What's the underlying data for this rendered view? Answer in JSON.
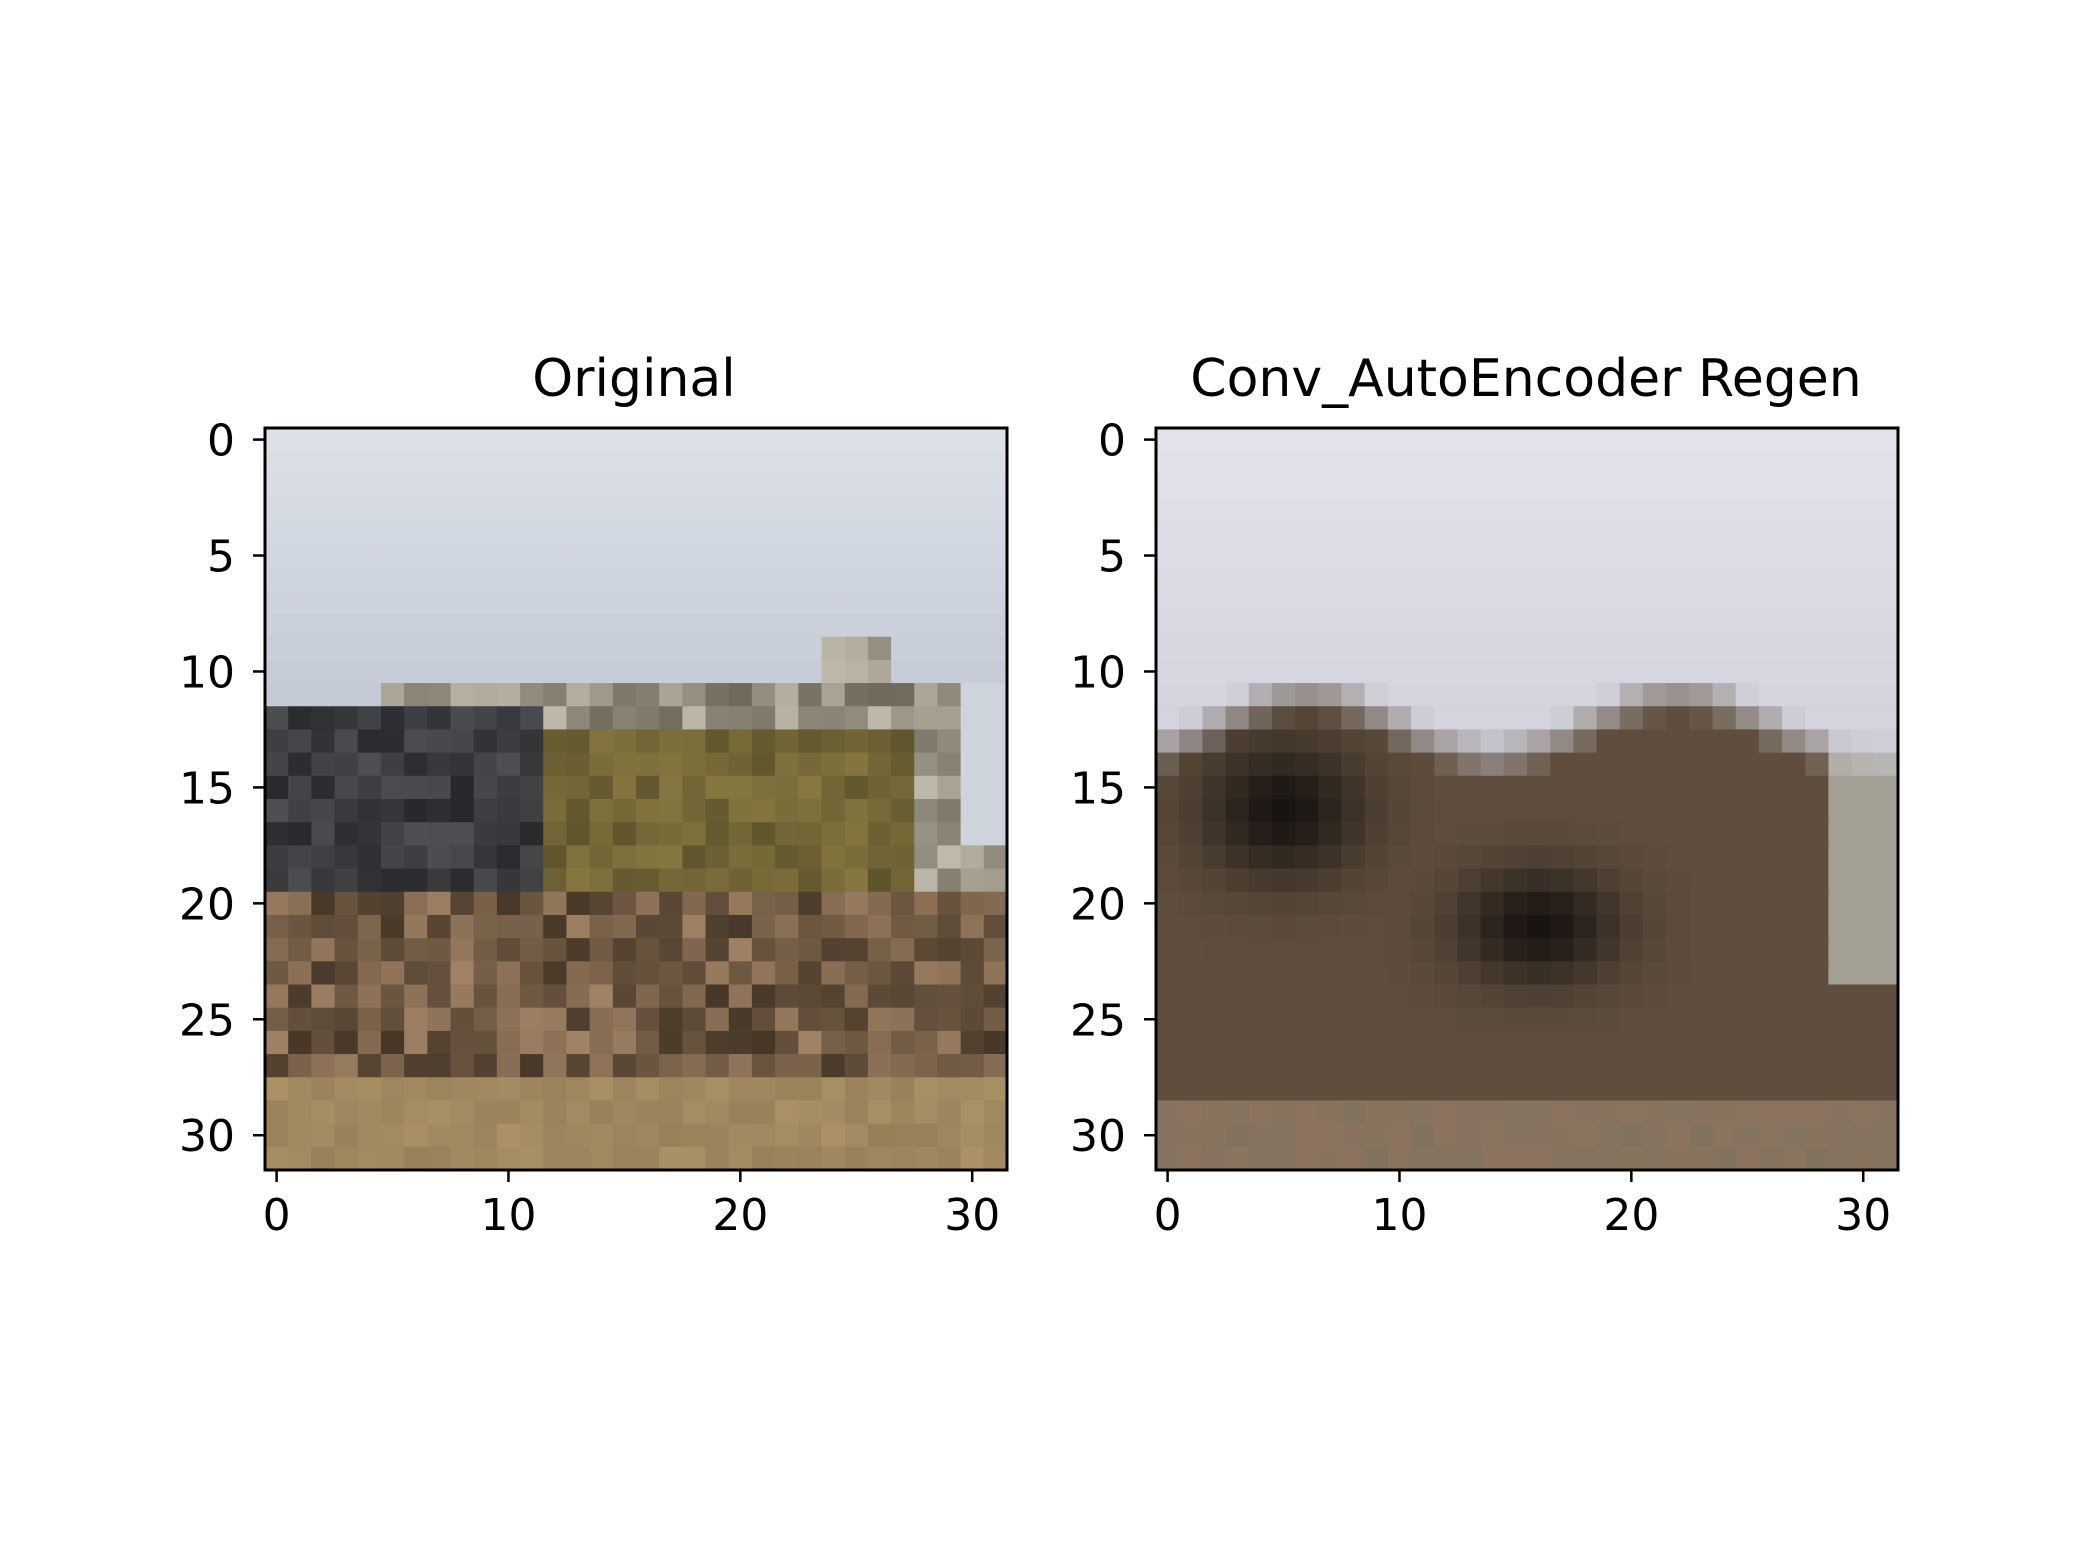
{
  "chart_data": [
    {
      "type": "heatmap",
      "title": "Original",
      "xlabel": "",
      "ylabel": "",
      "xlim": [
        -0.5,
        31.5
      ],
      "ylim": [
        31.5,
        -0.5
      ],
      "xticks": [
        0,
        10,
        20,
        30
      ],
      "yticks": [
        0,
        5,
        10,
        15,
        20,
        25,
        30
      ],
      "grid": false,
      "image_size": [
        32,
        32
      ]
    },
    {
      "type": "heatmap",
      "title": "Conv_AutoEncoder Regen",
      "xlabel": "",
      "ylabel": "",
      "xlim": [
        -0.5,
        31.5
      ],
      "ylim": [
        31.5,
        -0.5
      ],
      "xticks": [
        0,
        10,
        20,
        30
      ],
      "yticks": [
        0,
        5,
        10,
        15,
        20,
        25,
        30
      ],
      "grid": false,
      "image_size": [
        32,
        32
      ]
    }
  ]
}
